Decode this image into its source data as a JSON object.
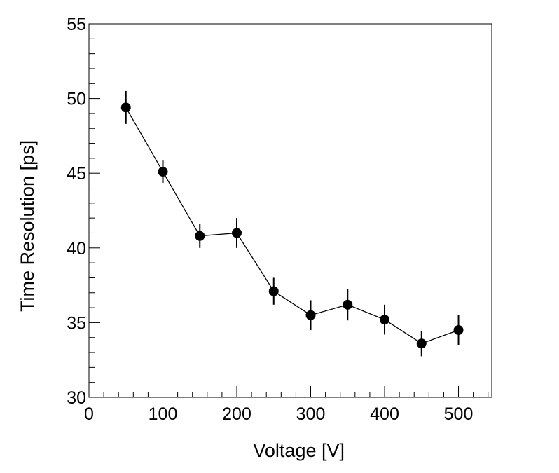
{
  "chart_data": {
    "type": "scatter",
    "title": "",
    "xlabel": "Voltage [V]",
    "ylabel": "Time Resolution [ps]",
    "xlim": [
      0,
      545
    ],
    "ylim": [
      30,
      55
    ],
    "x_ticks": [
      0,
      100,
      200,
      300,
      400,
      500
    ],
    "x_tick_labels": [
      "0",
      "100",
      "200",
      "300",
      "400",
      "500"
    ],
    "y_ticks": [
      30,
      35,
      40,
      45,
      50,
      55
    ],
    "y_tick_labels": [
      "30",
      "35",
      "40",
      "45",
      "50",
      "55"
    ],
    "grid": false,
    "legend": "none",
    "series": [
      {
        "name": "time-resolution",
        "style": "markers-with-line-and-error-bars",
        "color": "#000000",
        "x": [
          50,
          100,
          150,
          200,
          250,
          300,
          350,
          400,
          450,
          500
        ],
        "y": [
          49.4,
          45.1,
          40.8,
          41.0,
          37.1,
          35.5,
          36.2,
          35.2,
          33.6,
          34.5
        ],
        "yerr": [
          1.1,
          0.75,
          0.8,
          1.0,
          0.9,
          1.0,
          1.05,
          1.0,
          0.85,
          1.0
        ]
      }
    ]
  }
}
